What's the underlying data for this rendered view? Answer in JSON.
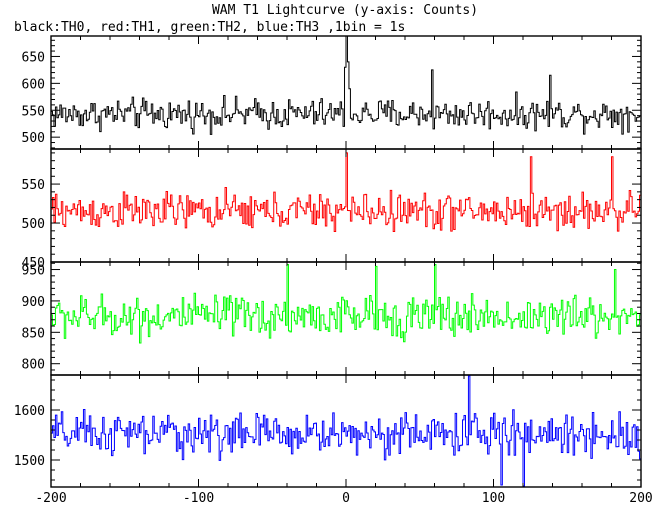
{
  "chart_data": {
    "type": "line",
    "title": "WAM T1 Lightcurve (y-axis: Counts)",
    "subtitle": "black:TH0, red:TH1, green:TH2, blue:TH3 ,1bin = 1s",
    "xlabel": "",
    "ylabel": "",
    "xlim": [
      -200,
      200
    ],
    "x_ticks": [
      -200,
      -100,
      0,
      100,
      200
    ],
    "grid": false,
    "step": 1,
    "panels": [
      {
        "name": "TH0",
        "color": "#000000",
        "ylim": [
          478,
          688
        ],
        "y_ticks": [
          500,
          550,
          600,
          650
        ],
        "mean": 543,
        "noise_amp": 30,
        "features": [
          {
            "x": -1,
            "y": 630
          },
          {
            "x": 0,
            "y": 688
          },
          {
            "x": 1,
            "y": 640
          },
          {
            "x": 2,
            "y": 590
          },
          {
            "x": 58,
            "y": 625
          },
          {
            "x": 138,
            "y": 615
          }
        ]
      },
      {
        "name": "TH1",
        "color": "#ff0000",
        "ylim": [
          450,
          595
        ],
        "y_ticks": [
          450,
          500,
          550
        ],
        "mean": 515,
        "noise_amp": 25,
        "features": [
          {
            "x": 0,
            "y": 590
          },
          {
            "x": 125,
            "y": 585
          },
          {
            "x": 180,
            "y": 585
          }
        ]
      },
      {
        "name": "TH2",
        "color": "#00ff00",
        "ylim": [
          782,
          962
        ],
        "y_ticks": [
          800,
          850,
          900,
          950
        ],
        "mean": 875,
        "noise_amp": 35,
        "features": [
          {
            "x": -40,
            "y": 958
          },
          {
            "x": 20,
            "y": 955
          },
          {
            "x": 60,
            "y": 958
          },
          {
            "x": 182,
            "y": 950
          }
        ]
      },
      {
        "name": "TH3",
        "color": "#0000ff",
        "ylim": [
          1446,
          1670
        ],
        "y_ticks": [
          1500,
          1600
        ],
        "mean": 1552,
        "noise_amp": 45,
        "features": [
          {
            "x": 83,
            "y": 1668
          },
          {
            "x": 105,
            "y": 1450
          },
          {
            "x": 120,
            "y": 1448
          }
        ]
      }
    ]
  }
}
